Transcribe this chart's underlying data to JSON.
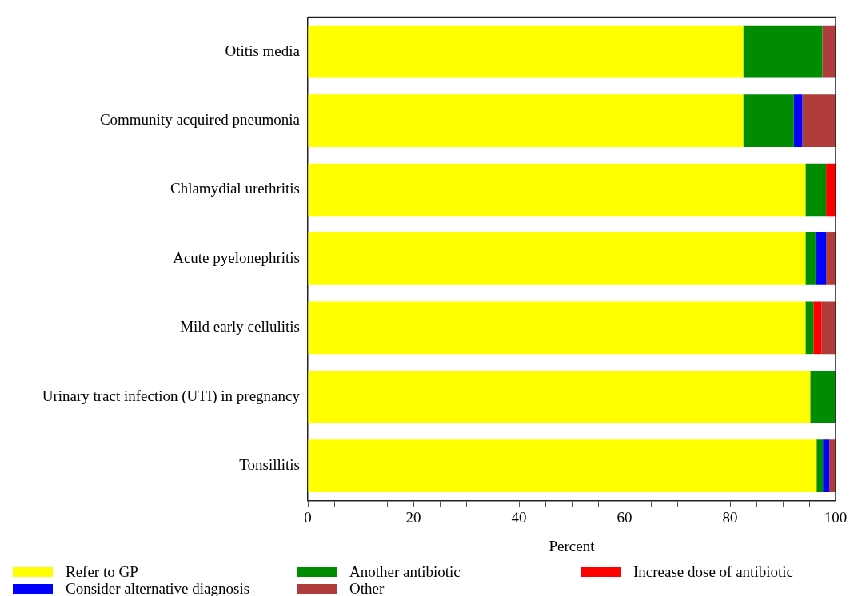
{
  "chart_data": {
    "type": "bar",
    "orientation": "horizontal",
    "stacked": true,
    "xlabel": "Percent",
    "categories": [
      "Otitis media",
      "Community acquired pneumonia",
      "Chlamydial urethritis",
      "Acute pyelonephritis",
      "Mild early cellulitis",
      "Urinary tract infection (UTI) in pregnancy",
      "Tonsillitis"
    ],
    "series": [
      {
        "name": "Refer to GP",
        "color": "#ffff00",
        "values": [
          82.5,
          82.5,
          94.3,
          94.3,
          94.3,
          95.2,
          96.4
        ]
      },
      {
        "name": "Another antibiotic",
        "color": "#008c00",
        "values": [
          15,
          9.6,
          3.9,
          1.9,
          1.5,
          4.8,
          1.2
        ]
      },
      {
        "name": "Increase dose of antibiotic",
        "color": "#ff0000",
        "values": [
          0,
          0,
          1.8,
          0,
          1.5,
          0,
          0
        ]
      },
      {
        "name": "Consider alternative diagnosis",
        "color": "#0000ff",
        "values": [
          0,
          1.6,
          0,
          2.0,
          0,
          0,
          1.2
        ]
      },
      {
        "name": "Other",
        "color": "#b03c3c",
        "values": [
          2.5,
          6.3,
          0,
          1.8,
          2.7,
          0,
          1.2
        ]
      }
    ],
    "xlim": [
      0,
      100
    ],
    "xticks": [
      0,
      {
        "value": 5,
        "label": null
      },
      {
        "value": 10,
        "label": null
      },
      {
        "value": 15,
        "label": null
      },
      20,
      {
        "value": 25,
        "label": null
      },
      {
        "value": 30,
        "label": null
      },
      {
        "value": 35,
        "label": null
      },
      40,
      {
        "value": 45,
        "label": null
      },
      {
        "value": 50,
        "label": null
      },
      {
        "value": 55,
        "label": null
      },
      60,
      {
        "value": 65,
        "label": null
      },
      {
        "value": 70,
        "label": null
      },
      {
        "value": 75,
        "label": null
      },
      80,
      {
        "value": 85,
        "label": null
      },
      {
        "value": 90,
        "label": null
      },
      {
        "value": 95,
        "label": null
      },
      100
    ],
    "grid": false,
    "legend": "bottom"
  }
}
